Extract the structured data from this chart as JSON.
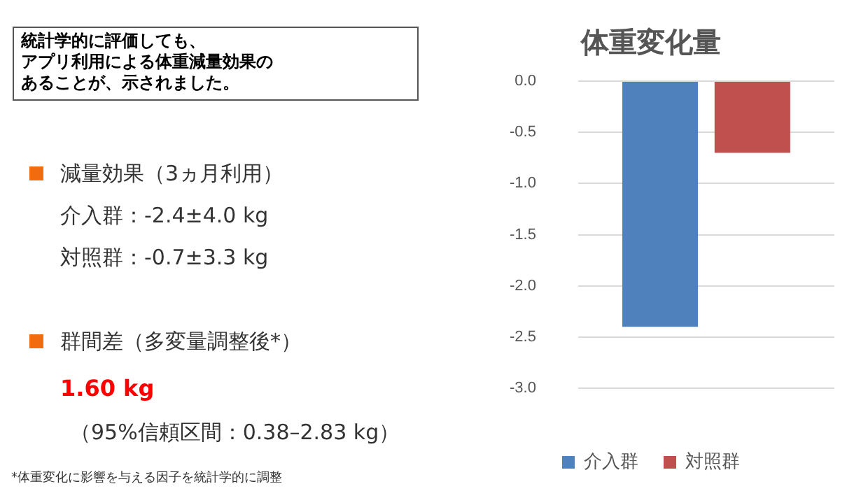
{
  "chart_data": {
    "type": "bar",
    "title": "体重変化量",
    "categories": [
      null
    ],
    "series": [
      {
        "name": "介入群",
        "color": "#4f81bd",
        "values": [
          -2.4
        ]
      },
      {
        "name": "対照群",
        "color": "#c0504d",
        "values": [
          -0.7
        ]
      }
    ],
    "ylim": [
      -3,
      0
    ],
    "yticks": [
      {
        "value": 0,
        "label": "0.0"
      },
      {
        "value": -0.5,
        "label": "-0.5"
      },
      {
        "value": -1,
        "label": "-1.0"
      },
      {
        "value": -1.5,
        "label": "-1.5"
      },
      {
        "value": -2,
        "label": "-2.0"
      },
      {
        "value": -2.5,
        "label": "-2.5"
      },
      {
        "value": -3,
        "label": "-3.0"
      }
    ],
    "grid": "y",
    "legend": "bottom",
    "annotations": [
      "統計学的に評価しても、",
      "アプリ利用による体重減量効果の",
      "あることが、示されました。",
      "減量効果（3ヵ月利用）",
      "介入群：-2.4±4.0 kg",
      "対照群：-0.7±3.3 kg",
      "群間差（多変量調整後*）",
      "1.60 kg",
      "（95%信頼区間：0.38–2.83 kg）",
      "*体重変化に影響を与える因子を統計学的に調整"
    ]
  }
}
